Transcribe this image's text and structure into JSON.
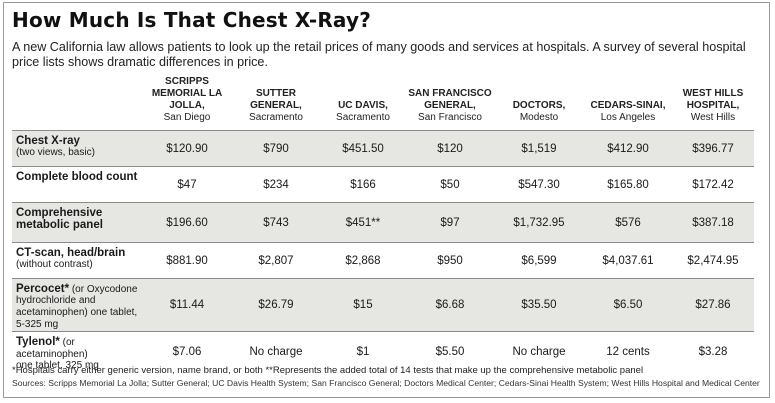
{
  "title": "How Much Is That Chest X-Ray?",
  "subtitle": "A new California law allows patients to look up the retail prices of many goods and services at hospitals. A survey of several hospital price lists shows dramatic differences in price.",
  "columns": [
    {
      "name": "SCRIPPS MEMORIAL LA JOLLA,",
      "city": "San Diego"
    },
    {
      "name": "SUTTER GENERAL,",
      "city": "Sacramento"
    },
    {
      "name": "UC DAVIS,",
      "city": "Sacramento"
    },
    {
      "name": "SAN FRANCISCO GENERAL,",
      "city": "San Francisco"
    },
    {
      "name": "DOCTORS,",
      "city": "Modesto"
    },
    {
      "name": "CEDARS-SINAI,",
      "city": "Los Angeles"
    },
    {
      "name": "WEST HILLS HOSPITAL,",
      "city": "West Hills"
    }
  ],
  "rows": [
    {
      "label": "Chest X-ray",
      "note": "(two views, basic)",
      "values": [
        "$120.90",
        "$790",
        "$451.50",
        "$120",
        "$1,519",
        "$412.90",
        "$396.77"
      ]
    },
    {
      "label": "Complete blood count",
      "note": "",
      "values": [
        "$47",
        "$234",
        "$166",
        "$50",
        "$547.30",
        "$165.80",
        "$172.42"
      ]
    },
    {
      "label": "Comprehensive metabolic panel",
      "note": "",
      "values": [
        "$196.60",
        "$743",
        "$451**",
        "$97",
        "$1,732.95",
        "$576",
        "$387.18"
      ]
    },
    {
      "label": "CT-scan, head/brain",
      "note": "(without contrast)",
      "values": [
        "$881.90",
        "$2,807",
        "$2,868",
        "$950",
        "$6,599",
        "$4,037.61",
        "$2,474.95"
      ]
    },
    {
      "label": "Percocet*",
      "note_inline": " (or Oxycodone",
      "note": "hydrochloride and acetaminophen) one tablet, 5-325 mg",
      "values": [
        "$11.44",
        "$26.79",
        "$15",
        "$6.68",
        "$35.50",
        "$6.50",
        "$27.86"
      ]
    },
    {
      "label": "Tylenol*",
      "note_inline": " (or acetaminophen)",
      "note": "one tablet, 325 mg",
      "values": [
        "$7.06",
        "No charge",
        "$1",
        "$5.50",
        "No charge",
        "12 cents",
        "$3.28"
      ]
    }
  ],
  "footnote": "*Hospitals carry either generic version, name brand, or both   **Represents the added total of 14 tests that make up the comprehensive metabolic panel",
  "sources": "Sources: Scripps Memorial La Jolla; Sutter General; UC Davis Health System; San Francisco General; Doctors Medical Center; Cedars-Sinai Health System; West Hills Hospital and Medical Center"
}
